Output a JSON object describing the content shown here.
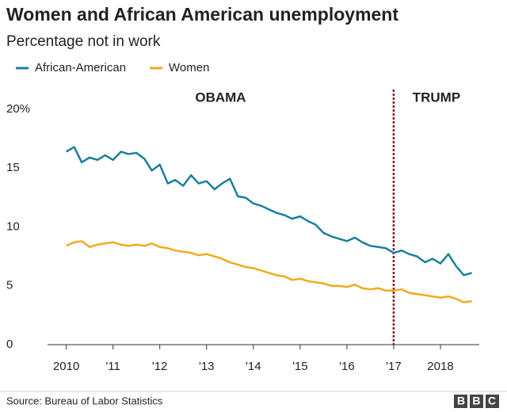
{
  "chart_data": {
    "type": "line",
    "title": "Women and African American unemployment",
    "subtitle": "Percentage not in work",
    "source": "Source: Bureau of Labor Statistics",
    "logo": "BBC",
    "annotations": [
      "OBAMA",
      "TRUMP"
    ],
    "divider_x": 2017,
    "x": [
      2010.0,
      2010.17,
      2010.33,
      2010.5,
      2010.67,
      2010.83,
      2011.0,
      2011.17,
      2011.33,
      2011.5,
      2011.67,
      2011.83,
      2012.0,
      2012.17,
      2012.33,
      2012.5,
      2012.67,
      2012.83,
      2013.0,
      2013.17,
      2013.33,
      2013.5,
      2013.67,
      2013.83,
      2014.0,
      2014.17,
      2014.33,
      2014.5,
      2014.67,
      2014.83,
      2015.0,
      2015.17,
      2015.33,
      2015.5,
      2015.67,
      2015.83,
      2016.0,
      2016.17,
      2016.33,
      2016.5,
      2016.67,
      2016.83,
      2017.0,
      2017.17,
      2017.33,
      2017.5,
      2017.67,
      2017.83,
      2018.0,
      2018.17,
      2018.33,
      2018.5,
      2018.67
    ],
    "series": [
      {
        "name": "African-American",
        "color": "#1a7f9c",
        "values": [
          16.4,
          16.8,
          15.5,
          15.9,
          15.7,
          16.1,
          15.7,
          16.4,
          16.2,
          16.3,
          15.8,
          14.8,
          15.3,
          13.7,
          14.0,
          13.5,
          14.4,
          13.7,
          13.9,
          13.2,
          13.7,
          14.1,
          12.6,
          12.5,
          12.0,
          11.8,
          11.5,
          11.2,
          11.0,
          10.7,
          10.9,
          10.5,
          10.2,
          9.5,
          9.2,
          9.0,
          8.8,
          9.1,
          8.7,
          8.4,
          8.3,
          8.2,
          7.8,
          8.0,
          7.7,
          7.5,
          7.0,
          7.3,
          6.9,
          7.7,
          6.7,
          5.9,
          6.1
        ]
      },
      {
        "name": "Women",
        "color": "#f2a91f",
        "values": [
          8.4,
          8.7,
          8.8,
          8.3,
          8.5,
          8.6,
          8.7,
          8.5,
          8.4,
          8.5,
          8.4,
          8.6,
          8.3,
          8.2,
          8.0,
          7.9,
          7.8,
          7.6,
          7.7,
          7.5,
          7.3,
          7.0,
          6.8,
          6.6,
          6.5,
          6.3,
          6.1,
          5.9,
          5.8,
          5.5,
          5.6,
          5.4,
          5.3,
          5.2,
          5.0,
          5.0,
          4.9,
          5.1,
          4.8,
          4.7,
          4.8,
          4.6,
          4.6,
          4.7,
          4.4,
          4.3,
          4.2,
          4.1,
          4.0,
          4.1,
          3.9,
          3.6,
          3.7
        ]
      }
    ],
    "xlim": [
      2009.6,
      2018.83
    ],
    "xticks": [
      2010,
      {
        "value": 2011,
        "label": "'11"
      },
      {
        "value": 2012,
        "label": "'12"
      },
      {
        "value": 2013,
        "label": "'13"
      },
      {
        "value": 2014,
        "label": "'14"
      },
      {
        "value": 2015,
        "label": "'15"
      },
      {
        "value": 2016,
        "label": "'16"
      },
      {
        "value": 2017,
        "label": "'17"
      },
      2018
    ],
    "ylim": [
      0,
      20
    ],
    "yticks": [
      0,
      5,
      10,
      15,
      {
        "value": 20,
        "label": "20%"
      }
    ],
    "grid": false
  }
}
